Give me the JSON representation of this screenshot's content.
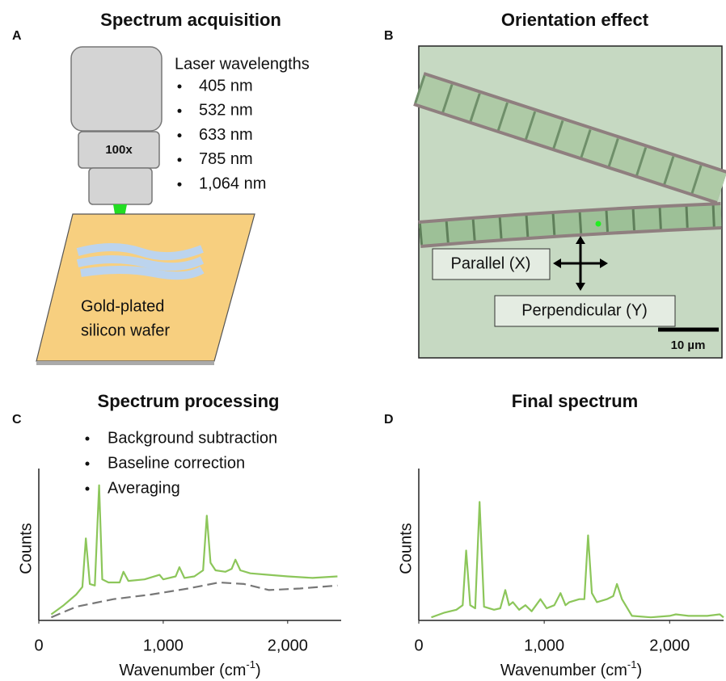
{
  "panel_a": {
    "letter": "A",
    "title": "Spectrum acquisition",
    "objective_label": "100x",
    "list_title": "Laser wavelengths",
    "wavelengths": [
      "405 nm",
      "532 nm",
      "633 nm",
      "785 nm",
      "1,064 nm"
    ],
    "substrate_label": [
      "Gold-plated",
      "silicon wafer"
    ]
  },
  "panel_b": {
    "letter": "B",
    "title": "Orientation effect",
    "parallel_label": "Parallel (X)",
    "perpendicular_label": "Perpendicular (Y)",
    "scale_bar": "10 µm"
  },
  "chart_data": [
    {
      "type": "line",
      "letter": "C",
      "title": "Spectrum processing",
      "steps": [
        "Background subtraction",
        "Baseline correction",
        "Averaging"
      ],
      "ylabel": "Counts",
      "xlabel": [
        "Wavenumber (cm",
        "-1",
        ")"
      ],
      "xlim": [
        0,
        2430
      ],
      "ylim": [
        0,
        100
      ],
      "xticks": [
        0,
        {
          "value": 1000,
          "label": "1,000"
        },
        {
          "value": 2000,
          "label": "2,000"
        }
      ],
      "series": [
        {
          "color": "#8cc65a",
          "dashed": false,
          "x": [
            100,
            200,
            300,
            350,
            378,
            410,
            450,
            485,
            510,
            560,
            650,
            680,
            720,
            850,
            970,
            1000,
            1100,
            1130,
            1170,
            1250,
            1320,
            1350,
            1380,
            1420,
            1500,
            1550,
            1580,
            1620,
            1700,
            1850,
            2000,
            2200,
            2400
          ],
          "values": [
            4,
            10,
            17,
            22,
            54,
            24,
            23,
            89,
            27,
            25,
            25,
            32,
            26,
            27,
            30,
            27,
            29,
            35,
            28,
            29,
            33,
            69,
            38,
            33,
            32,
            34,
            40,
            33,
            31,
            30,
            29,
            28,
            29
          ]
        },
        {
          "color": "#777777",
          "dashed": true,
          "x": [
            100,
            300,
            600,
            900,
            1200,
            1450,
            1650,
            1850,
            2100,
            2400
          ],
          "values": [
            2,
            9,
            14,
            17,
            21,
            25,
            24,
            20,
            21,
            23
          ]
        }
      ]
    },
    {
      "type": "line",
      "letter": "D",
      "title": "Final spectrum",
      "ylabel": "Counts",
      "xlabel": [
        "Wavenumber (cm",
        "-1",
        ")"
      ],
      "xlim": [
        0,
        2430
      ],
      "ylim": [
        0,
        100
      ],
      "xticks": [
        0,
        {
          "value": 1000,
          "label": "1,000"
        },
        {
          "value": 2000,
          "label": "2,000"
        }
      ],
      "series": [
        {
          "color": "#8cc65a",
          "dashed": false,
          "x": [
            100,
            200,
            300,
            350,
            378,
            410,
            450,
            485,
            520,
            600,
            650,
            690,
            720,
            750,
            800,
            850,
            900,
            970,
            1020,
            1080,
            1130,
            1170,
            1200,
            1280,
            1320,
            1350,
            1380,
            1420,
            1500,
            1550,
            1580,
            1620,
            1700,
            1850,
            2000,
            2050,
            2150,
            2300,
            2400,
            2430
          ],
          "values": [
            2,
            5,
            7,
            10,
            46,
            10,
            8,
            78,
            9,
            7,
            8,
            20,
            10,
            12,
            7,
            10,
            6,
            14,
            8,
            10,
            18,
            10,
            12,
            14,
            14,
            56,
            18,
            12,
            14,
            16,
            24,
            14,
            3,
            2,
            3,
            4,
            3,
            3,
            4,
            2
          ]
        }
      ]
    }
  ]
}
